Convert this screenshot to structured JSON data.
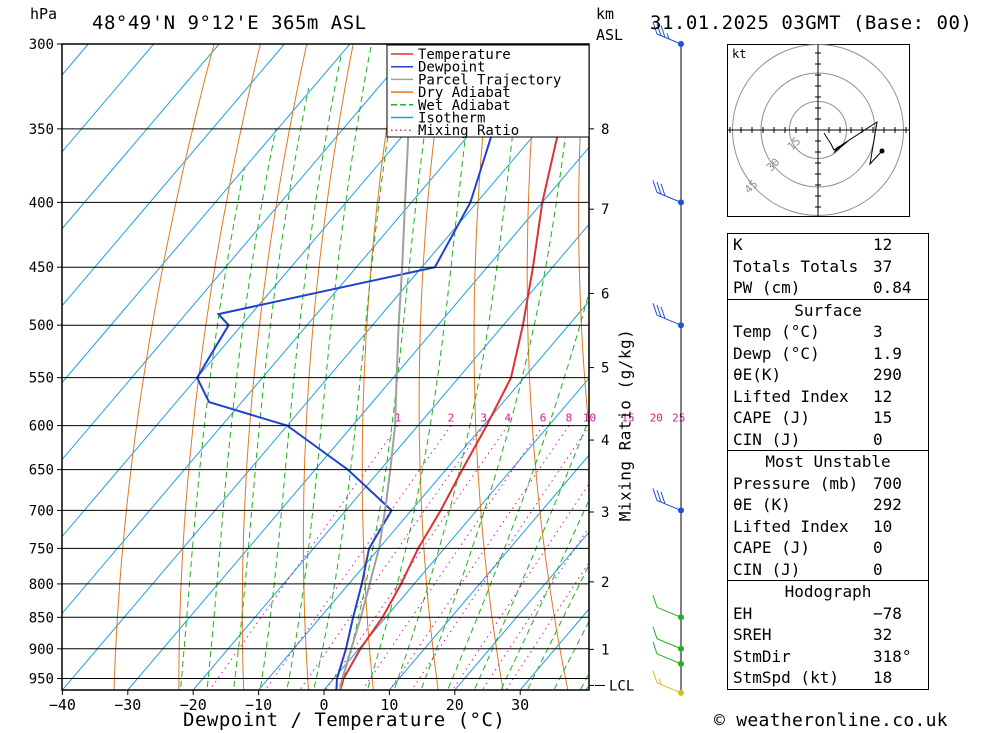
{
  "header": {
    "hpa_label": "hPa",
    "location": "48°49'N  9°12'E  365m  ASL",
    "km_label": "km",
    "asl_label": "ASL",
    "datetime": "31.01.2025  03GMT  (Base: 00)"
  },
  "footer": {
    "credit": "© weatheronline.co.uk"
  },
  "colors": {
    "temperature": "#e03030",
    "dewpoint": "#2040d0",
    "parcel": "#a0a0a0",
    "dry_adiabat": "#e07820",
    "wet_adiabat": "#20b020",
    "isotherm": "#20a0e0",
    "mixing_ratio": "#d02090"
  },
  "chart_data": {
    "type": "skew-t",
    "xlabel": "Dewpoint / Temperature (°C)",
    "ylabel_left": "hPa",
    "ylabel_right": "Mixing Ratio (g/kg)",
    "x_ticks": [
      -40,
      -30,
      -20,
      -10,
      0,
      10,
      20,
      30
    ],
    "x_tick_labels": [
      "−40",
      "−30",
      "−20",
      "−10",
      "0",
      "10",
      "20",
      "30"
    ],
    "pressure_levels": [
      300,
      350,
      400,
      450,
      500,
      550,
      600,
      650,
      700,
      750,
      800,
      850,
      900,
      950
    ],
    "km_ticks": [
      {
        "km": "8",
        "p": 350
      },
      {
        "km": "7",
        "p": 405
      },
      {
        "km": "6",
        "p": 472
      },
      {
        "km": "5",
        "p": 540
      },
      {
        "km": "4",
        "p": 616
      },
      {
        "km": "3",
        "p": 702
      },
      {
        "km": "2",
        "p": 797
      },
      {
        "km": "1",
        "p": 901
      },
      {
        "km": "LCL",
        "p": 962
      }
    ],
    "mixing_ratio_labels": [
      "1",
      "2",
      "3",
      "4",
      "6",
      "8",
      "10",
      "15",
      "20",
      "25"
    ],
    "mixing_ratio_values": [
      1,
      2,
      3,
      4,
      6,
      8,
      10,
      15,
      20,
      25
    ],
    "legend": [
      "Temperature",
      "Dewpoint",
      "Parcel Trajectory",
      "Dry Adiabat",
      "Wet Adiabat",
      "Isotherm",
      "Mixing Ratio"
    ],
    "series": [
      {
        "name": "Temperature",
        "points": [
          [
            970,
            2.5
          ],
          [
            950,
            1.5
          ],
          [
            900,
            0.2
          ],
          [
            850,
            -0.5
          ],
          [
            800,
            -2
          ],
          [
            750,
            -4
          ],
          [
            700,
            -5.5
          ],
          [
            650,
            -7.5
          ],
          [
            600,
            -9.5
          ],
          [
            550,
            -12
          ],
          [
            500,
            -17
          ],
          [
            450,
            -23
          ],
          [
            400,
            -30
          ],
          [
            350,
            -37
          ],
          [
            300,
            -45
          ]
        ]
      },
      {
        "name": "Dewpoint",
        "points": [
          [
            970,
            1.9
          ],
          [
            950,
            0.5
          ],
          [
            900,
            -2
          ],
          [
            850,
            -5
          ],
          [
            800,
            -8
          ],
          [
            750,
            -11.5
          ],
          [
            700,
            -13
          ],
          [
            650,
            -25
          ],
          [
            600,
            -40
          ],
          [
            575,
            -55
          ],
          [
            550,
            -60
          ],
          [
            500,
            -62
          ],
          [
            490,
            -65
          ],
          [
            450,
            -38
          ],
          [
            400,
            -41
          ],
          [
            350,
            -47
          ],
          [
            300,
            -55
          ]
        ]
      },
      {
        "name": "Parcel Trajectory",
        "points": [
          [
            970,
            2.5
          ],
          [
            962,
            1.9
          ],
          [
            900,
            -1.2
          ],
          [
            850,
            -3.8
          ],
          [
            800,
            -6.8
          ],
          [
            750,
            -10
          ],
          [
            700,
            -14
          ],
          [
            650,
            -18.5
          ],
          [
            600,
            -23.5
          ],
          [
            550,
            -29.5
          ],
          [
            500,
            -36
          ],
          [
            450,
            -43
          ],
          [
            400,
            -51
          ],
          [
            350,
            -60
          ],
          [
            320,
            -66
          ]
        ]
      }
    ]
  },
  "wind_profile": [
    {
      "p": 300,
      "speed_kt": 25
    },
    {
      "p": 400,
      "speed_kt": 30
    },
    {
      "p": 500,
      "speed_kt": 30
    },
    {
      "p": 700,
      "speed_kt": 30
    },
    {
      "p": 850,
      "speed_kt": 10
    },
    {
      "p": 900,
      "speed_kt": 10
    },
    {
      "p": 925,
      "speed_kt": 10
    },
    {
      "p": 975,
      "speed_kt": 5
    }
  ],
  "hodograph": {
    "unit_label": "kt",
    "ring_labels": [
      "15",
      "30",
      "45"
    ]
  },
  "indices": {
    "basic": [
      {
        "label": "K",
        "value": "12"
      },
      {
        "label": "Totals Totals",
        "value": "37"
      },
      {
        "label": "PW (cm)",
        "value": "0.84"
      }
    ],
    "surface_title": "Surface",
    "surface": [
      {
        "label": "Temp (°C)",
        "value": "3"
      },
      {
        "label": "Dewp (°C)",
        "value": "1.9"
      },
      {
        "label": "θE(K)",
        "value": "290"
      },
      {
        "label": "Lifted Index",
        "value": "12"
      },
      {
        "label": "CAPE (J)",
        "value": "15"
      },
      {
        "label": "CIN (J)",
        "value": "0"
      }
    ],
    "unstable_title": "Most Unstable",
    "unstable": [
      {
        "label": "Pressure (mb)",
        "value": "700"
      },
      {
        "label": "θE (K)",
        "value": "292"
      },
      {
        "label": "Lifted Index",
        "value": "10"
      },
      {
        "label": "CAPE (J)",
        "value": "0"
      },
      {
        "label": "CIN (J)",
        "value": "0"
      }
    ],
    "hodo_title": "Hodograph",
    "hodo": [
      {
        "label": "EH",
        "value": "−78"
      },
      {
        "label": "SREH",
        "value": "32"
      },
      {
        "label": "StmDir",
        "value": "318°"
      },
      {
        "label": "StmSpd (kt)",
        "value": "18"
      }
    ]
  }
}
